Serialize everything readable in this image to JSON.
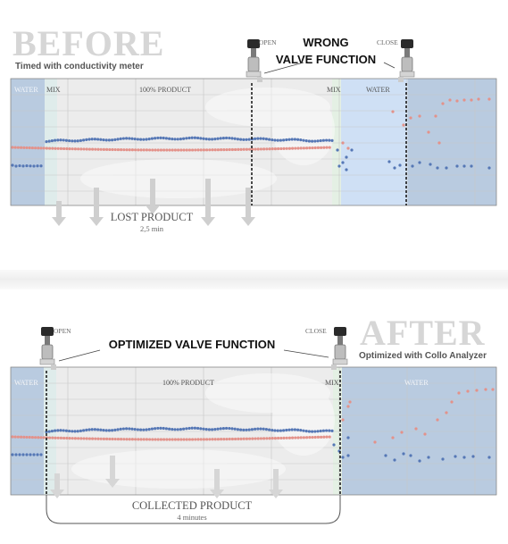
{
  "before": {
    "heading": "BEFORE",
    "subheading": "Timed with conductivity meter",
    "title_line1": "WRONG",
    "title_line2": "VALVE FUNCTION",
    "valve_open_label": "OPEN",
    "valve_close_label": "CLOSE",
    "zone_water_left": "WATER",
    "zone_mix_left": "MIX",
    "zone_product": "100% PRODUCT",
    "zone_mix_right": "MIX",
    "zone_water_right": "WATER",
    "result_label": "LOST PRODUCT",
    "result_sublabel": "2,5 min"
  },
  "after": {
    "heading": "AFTER",
    "subheading": "Optimized with Collo Analyzer",
    "title": "OPTIMIZED VALVE FUNCTION",
    "valve_open_label": "OPEN",
    "valve_close_label": "CLOSE",
    "zone_water_left": "WATER",
    "zone_product": "100% PRODUCT",
    "zone_mix_right": "MIX",
    "zone_water_right": "WATER",
    "result_label": "COLLECTED PRODUCT",
    "result_sublabel": "4 minutes"
  },
  "colors": {
    "water_zone": "#b9cbe0",
    "mix_zone": "#d8ecf0",
    "product_zone": "#ececec",
    "blue_series": "#5577b5",
    "red_series": "#e3928a",
    "grid": "#c7c7c7"
  },
  "icons": [
    "valve-icon",
    "arrow-down-icon"
  ]
}
